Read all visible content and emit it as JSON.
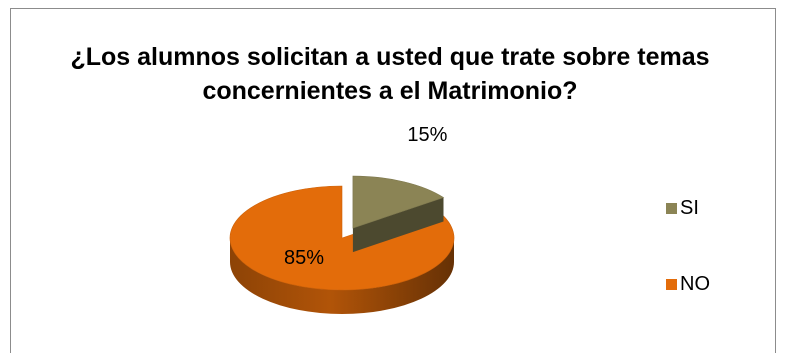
{
  "chart_data": {
    "type": "pie",
    "title": "¿Los alumnos solicitan a usted que trate sobre temas concernientes a el Matrimonio?",
    "categories": [
      "SI",
      "NO"
    ],
    "values": [
      15,
      85
    ],
    "data_labels": [
      "15%",
      "85%"
    ],
    "colors": [
      "#8B8455",
      "#E36C0A"
    ],
    "legend_position": "right",
    "style": "3d-exploded"
  }
}
